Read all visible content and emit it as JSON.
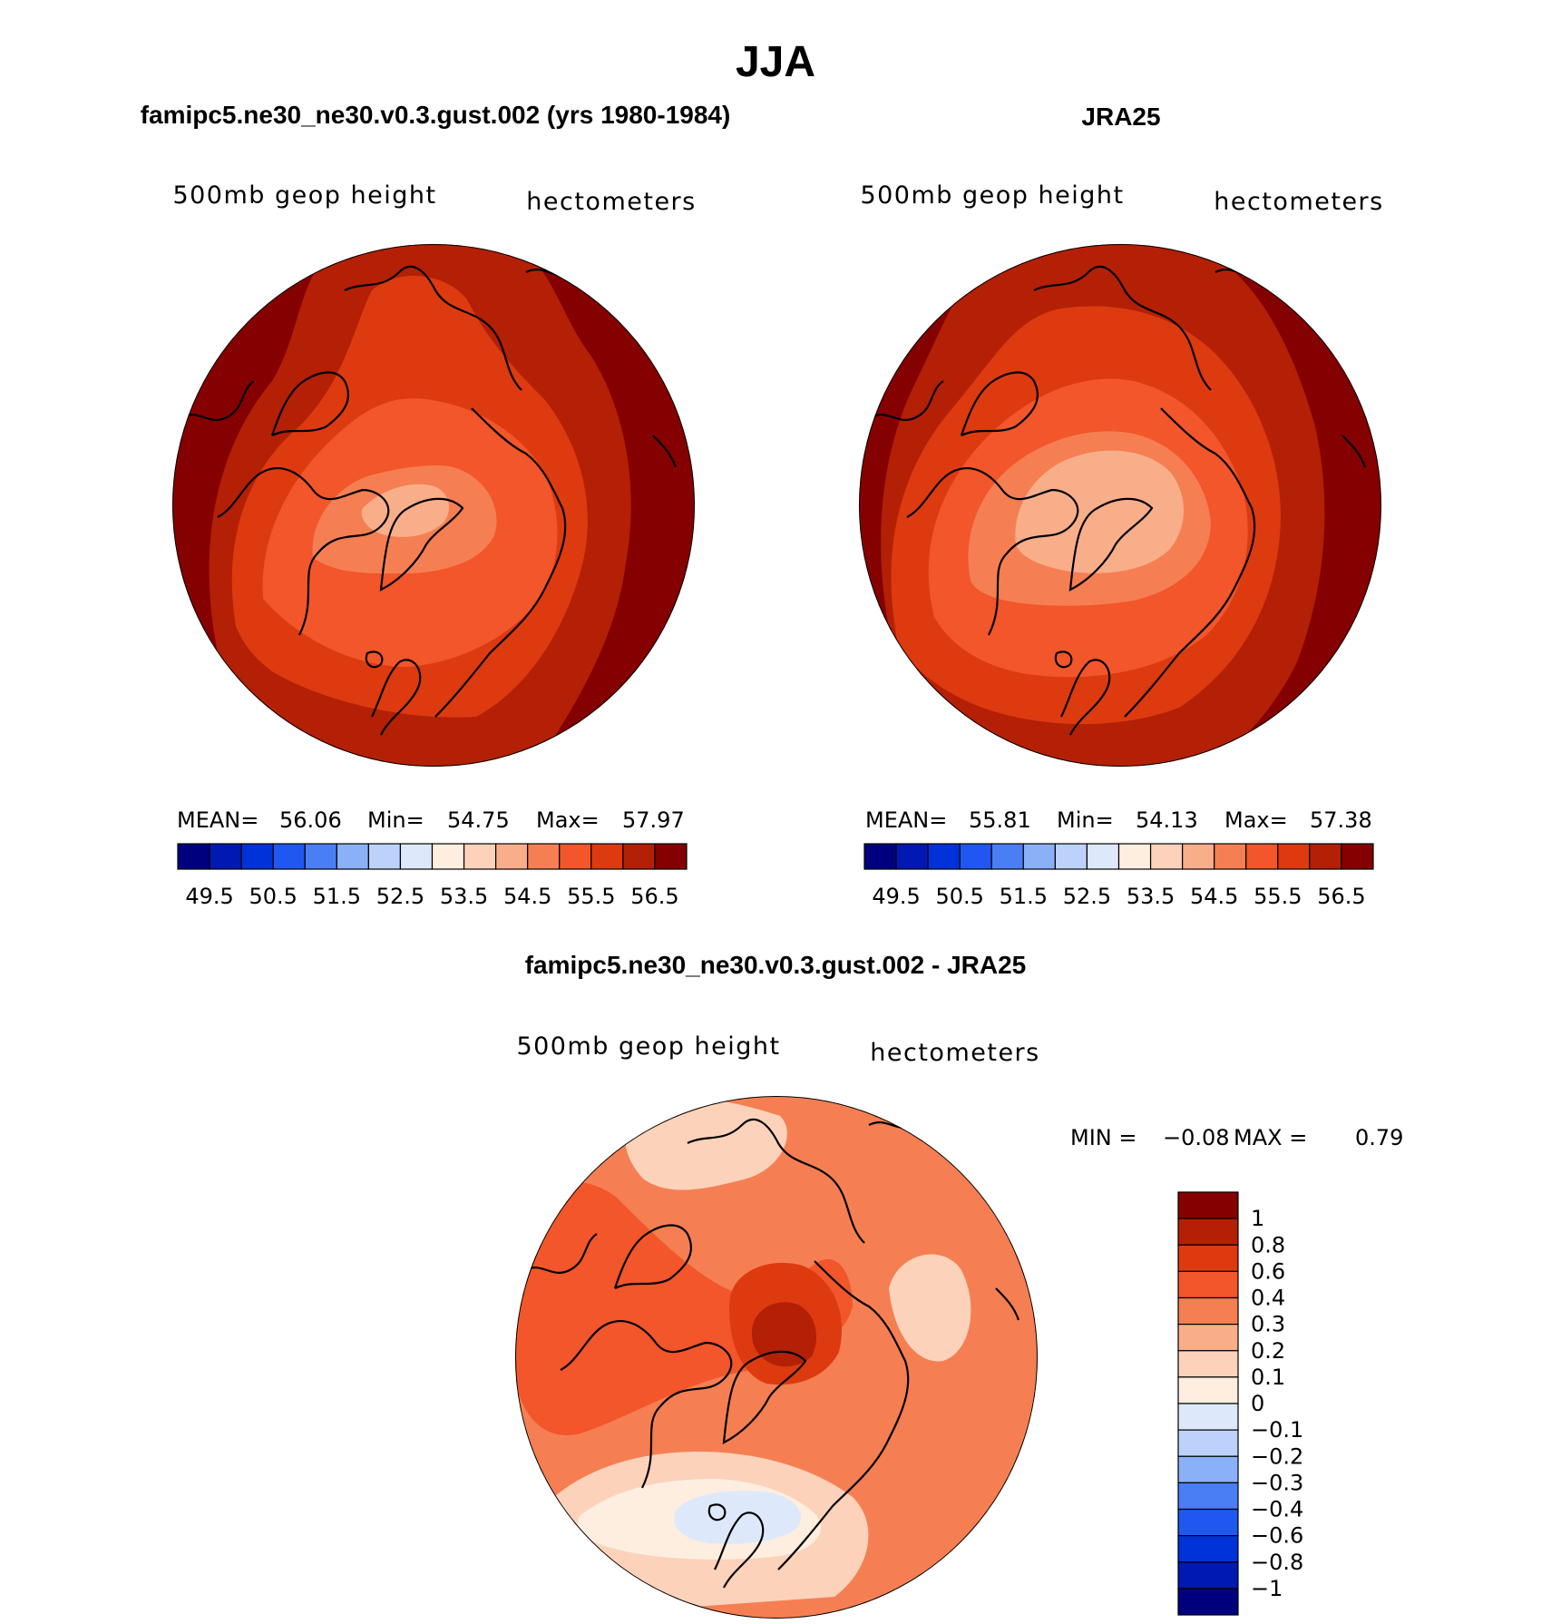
{
  "figure": {
    "title": "JJA"
  },
  "colors": {
    "model_obs_levels": [
      "#00007f",
      "#0019b2",
      "#0032d9",
      "#1f57f0",
      "#4a7ef5",
      "#8ab0f7",
      "#bcd2fa",
      "#dde9fb",
      "#feeee0",
      "#fcd2bb",
      "#f9ae8a",
      "#f57f52",
      "#f2562a",
      "#de3a10",
      "#b32006",
      "#850000"
    ],
    "diff_levels": [
      "#00007f",
      "#0019b2",
      "#0032d9",
      "#1f57f0",
      "#4a7ef5",
      "#8ab0f7",
      "#bcd2fa",
      "#dde9fb",
      "#feeee0",
      "#fcd2bb",
      "#f9ae8a",
      "#f57f52",
      "#f2562a",
      "#de3a10",
      "#b32006",
      "#850000"
    ]
  },
  "panels": [
    {
      "id": "model",
      "header": "famipc5.ne30_ne30.v0.3.gust.002 (yrs 1980-1984)",
      "left_label": "500mb geop height",
      "right_label": "hectometers",
      "stats": {
        "mean_label": "MEAN=",
        "mean_value": "56.06",
        "min_label": "Min=",
        "min_value": "54.75",
        "max_label": "Max=",
        "max_value": "57.97"
      },
      "colorbar_ticks": [
        "49.5",
        "50.5",
        "51.5",
        "52.5",
        "53.5",
        "54.5",
        "55.5",
        "56.5"
      ]
    },
    {
      "id": "obs",
      "header": "JRA25",
      "left_label": "500mb geop height",
      "right_label": "hectometers",
      "stats": {
        "mean_label": "MEAN=",
        "mean_value": "55.81",
        "min_label": "Min=",
        "min_value": "54.13",
        "max_label": "Max=",
        "max_value": "57.38"
      },
      "colorbar_ticks": [
        "49.5",
        "50.5",
        "51.5",
        "52.5",
        "53.5",
        "54.5",
        "55.5",
        "56.5"
      ]
    },
    {
      "id": "diff",
      "header": "famipc5.ne30_ne30.v0.3.gust.002 - JRA25",
      "left_label": "500mb geop height",
      "right_label": "hectometers",
      "stats": {
        "min_label": "MIN =",
        "min_value": "−0.08",
        "max_label": "MAX =",
        "max_value": "0.79"
      },
      "colorbar_ticks": [
        "1",
        "0.8",
        "0.6",
        "0.4",
        "0.3",
        "0.2",
        "0.1",
        "0",
        "−0.1",
        "−0.2",
        "−0.3",
        "−0.4",
        "−0.6",
        "−0.8",
        "−1"
      ]
    }
  ]
}
